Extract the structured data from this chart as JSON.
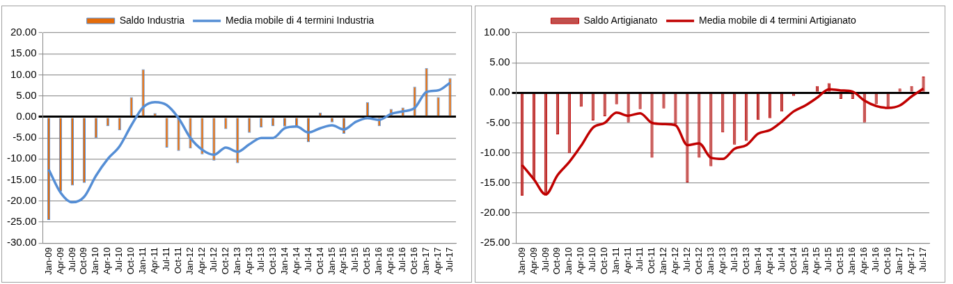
{
  "chart_data": [
    {
      "type": "bar",
      "categories": [
        "Jan-09",
        "Apr-09",
        "Jul-09",
        "Oct-09",
        "Jan-10",
        "Apr-10",
        "Jul-10",
        "Oct-10",
        "Jan-11",
        "Apr-11",
        "Jul-11",
        "Oct-11",
        "Jan-12",
        "Apr-12",
        "Jul-12",
        "Oct-12",
        "Jan-13",
        "Apr-13",
        "Jul-13",
        "Oct-13",
        "Jan-14",
        "Apr-14",
        "Jul-14",
        "Oct-14",
        "Jan-15",
        "Apr-15",
        "Jul-15",
        "Oct-15",
        "Jan-16",
        "Apr-16",
        "Jul-16",
        "Oct-16",
        "Jan-17",
        "Apr-17",
        "Jul-17"
      ],
      "series": [
        {
          "name": "Saldo Industria",
          "color": "#e46c0a",
          "values": [
            -24.5,
            -17.7,
            -16.3,
            -15.7,
            -5.0,
            -2.2,
            -3.2,
            4.7,
            11.3,
            0.9,
            -7.3,
            -8.1,
            -7.5,
            -8.9,
            -10.4,
            -2.9,
            -11.0,
            -3.8,
            -2.5,
            -2.2,
            -2.3,
            -2.2,
            -6.0,
            1.0,
            -1.3,
            -4.0,
            null,
            3.5,
            -2.2,
            1.9,
            2.2,
            7.2,
            11.6,
            4.7,
            9.2
          ]
        },
        {
          "name": "Media mobile di 4 termini Industria",
          "type": "line",
          "color": "#558ed5",
          "values": [
            -12.5,
            -18.0,
            -20.3,
            -19.0,
            -14.0,
            -10.0,
            -7.0,
            -2.0,
            2.3,
            3.5,
            2.8,
            -0.3,
            -5.0,
            -7.8,
            -9.0,
            -7.3,
            -8.3,
            -6.5,
            -5.0,
            -5.0,
            -2.7,
            -2.3,
            -3.7,
            -2.7,
            -2.0,
            -3.0,
            -1.2,
            -0.3,
            -0.7,
            0.7,
            1.3,
            2.1,
            5.9,
            6.3,
            8.1
          ]
        }
      ],
      "ylim": [
        -30,
        20
      ],
      "yticks": [
        {
          "value": -30,
          "label": "-30.00"
        },
        {
          "value": -25,
          "label": "-25.00"
        },
        {
          "value": -20,
          "label": "-20.00"
        },
        {
          "value": -15,
          "label": "-15.00"
        },
        {
          "value": -10,
          "label": "-10.00"
        },
        {
          "value": -5,
          "label": "-5.00"
        },
        {
          "value": 0,
          "label": "0.00"
        },
        {
          "value": 5,
          "label": "5.00"
        },
        {
          "value": 10,
          "label": "10.00"
        },
        {
          "value": 15,
          "label": "15.00"
        },
        {
          "value": 20,
          "label": "20.00"
        }
      ],
      "grid": "y",
      "legend": "top",
      "marker": "none"
    },
    {
      "type": "bar",
      "categories": [
        "Jan-09",
        "Apr-09",
        "Jul-09",
        "Oct-09",
        "Jan-10",
        "Apr-10",
        "Jul-10",
        "Oct-10",
        "Jan-11",
        "Apr-11",
        "Jul-11",
        "Oct-11",
        "Jan-12",
        "Apr-12",
        "Jul-12",
        "Oct-12",
        "Jan-13",
        "Apr-13",
        "Jul-13",
        "Oct-13",
        "Jan-14",
        "Apr-14",
        "Jul-14",
        "Oct-14",
        "Jan-15",
        "Apr-15",
        "Jul-15",
        "Oct-15",
        "Jan-16",
        "Apr-16",
        "Jul-16",
        "Oct-16",
        "Jan-17",
        "Apr-17",
        "Jul-17"
      ],
      "series": [
        {
          "name": "Saldo Artigianato",
          "color": "#c0504d",
          "values": [
            -17.1,
            -14.5,
            -17.1,
            -6.9,
            -10.0,
            -2.3,
            -4.6,
            -3.9,
            -1.9,
            -4.9,
            -2.7,
            -10.8,
            -2.6,
            -5.2,
            -14.9,
            -10.8,
            -12.2,
            -6.6,
            -8.6,
            -8.0,
            -4.5,
            -4.2,
            -3.1,
            -0.5,
            null,
            1.1,
            1.6,
            -1.0,
            -1.0,
            -4.9,
            -1.9,
            -2.3,
            0.7,
            1.1,
            2.7
          ]
        },
        {
          "name": "Media mobile di 4 termini Artigianato",
          "type": "line",
          "color": "#c00000",
          "values": [
            -12.0,
            -14.4,
            -16.9,
            -13.7,
            -11.5,
            -8.8,
            -5.8,
            -5.0,
            -3.3,
            -3.8,
            -3.4,
            -5.0,
            -5.2,
            -5.4,
            -8.7,
            -8.4,
            -10.8,
            -11.0,
            -9.3,
            -8.7,
            -6.8,
            -6.2,
            -4.8,
            -3.1,
            -2.1,
            -0.8,
            0.6,
            0.4,
            0.2,
            -1.3,
            -2.2,
            -2.5,
            -2.1,
            -0.6,
            0.7
          ]
        }
      ],
      "ylim": [
        -25,
        10
      ],
      "yticks": [
        {
          "value": -25,
          "label": "-25.00"
        },
        {
          "value": -20,
          "label": "-20.00"
        },
        {
          "value": -15,
          "label": "-15.00"
        },
        {
          "value": -10,
          "label": "-10.00"
        },
        {
          "value": -5,
          "label": "-5.00"
        },
        {
          "value": 0,
          "label": "0.00"
        },
        {
          "value": 5,
          "label": "5.00"
        },
        {
          "value": 10,
          "label": "10.00"
        }
      ],
      "grid": "y",
      "legend": "top",
      "marker": "none"
    }
  ]
}
